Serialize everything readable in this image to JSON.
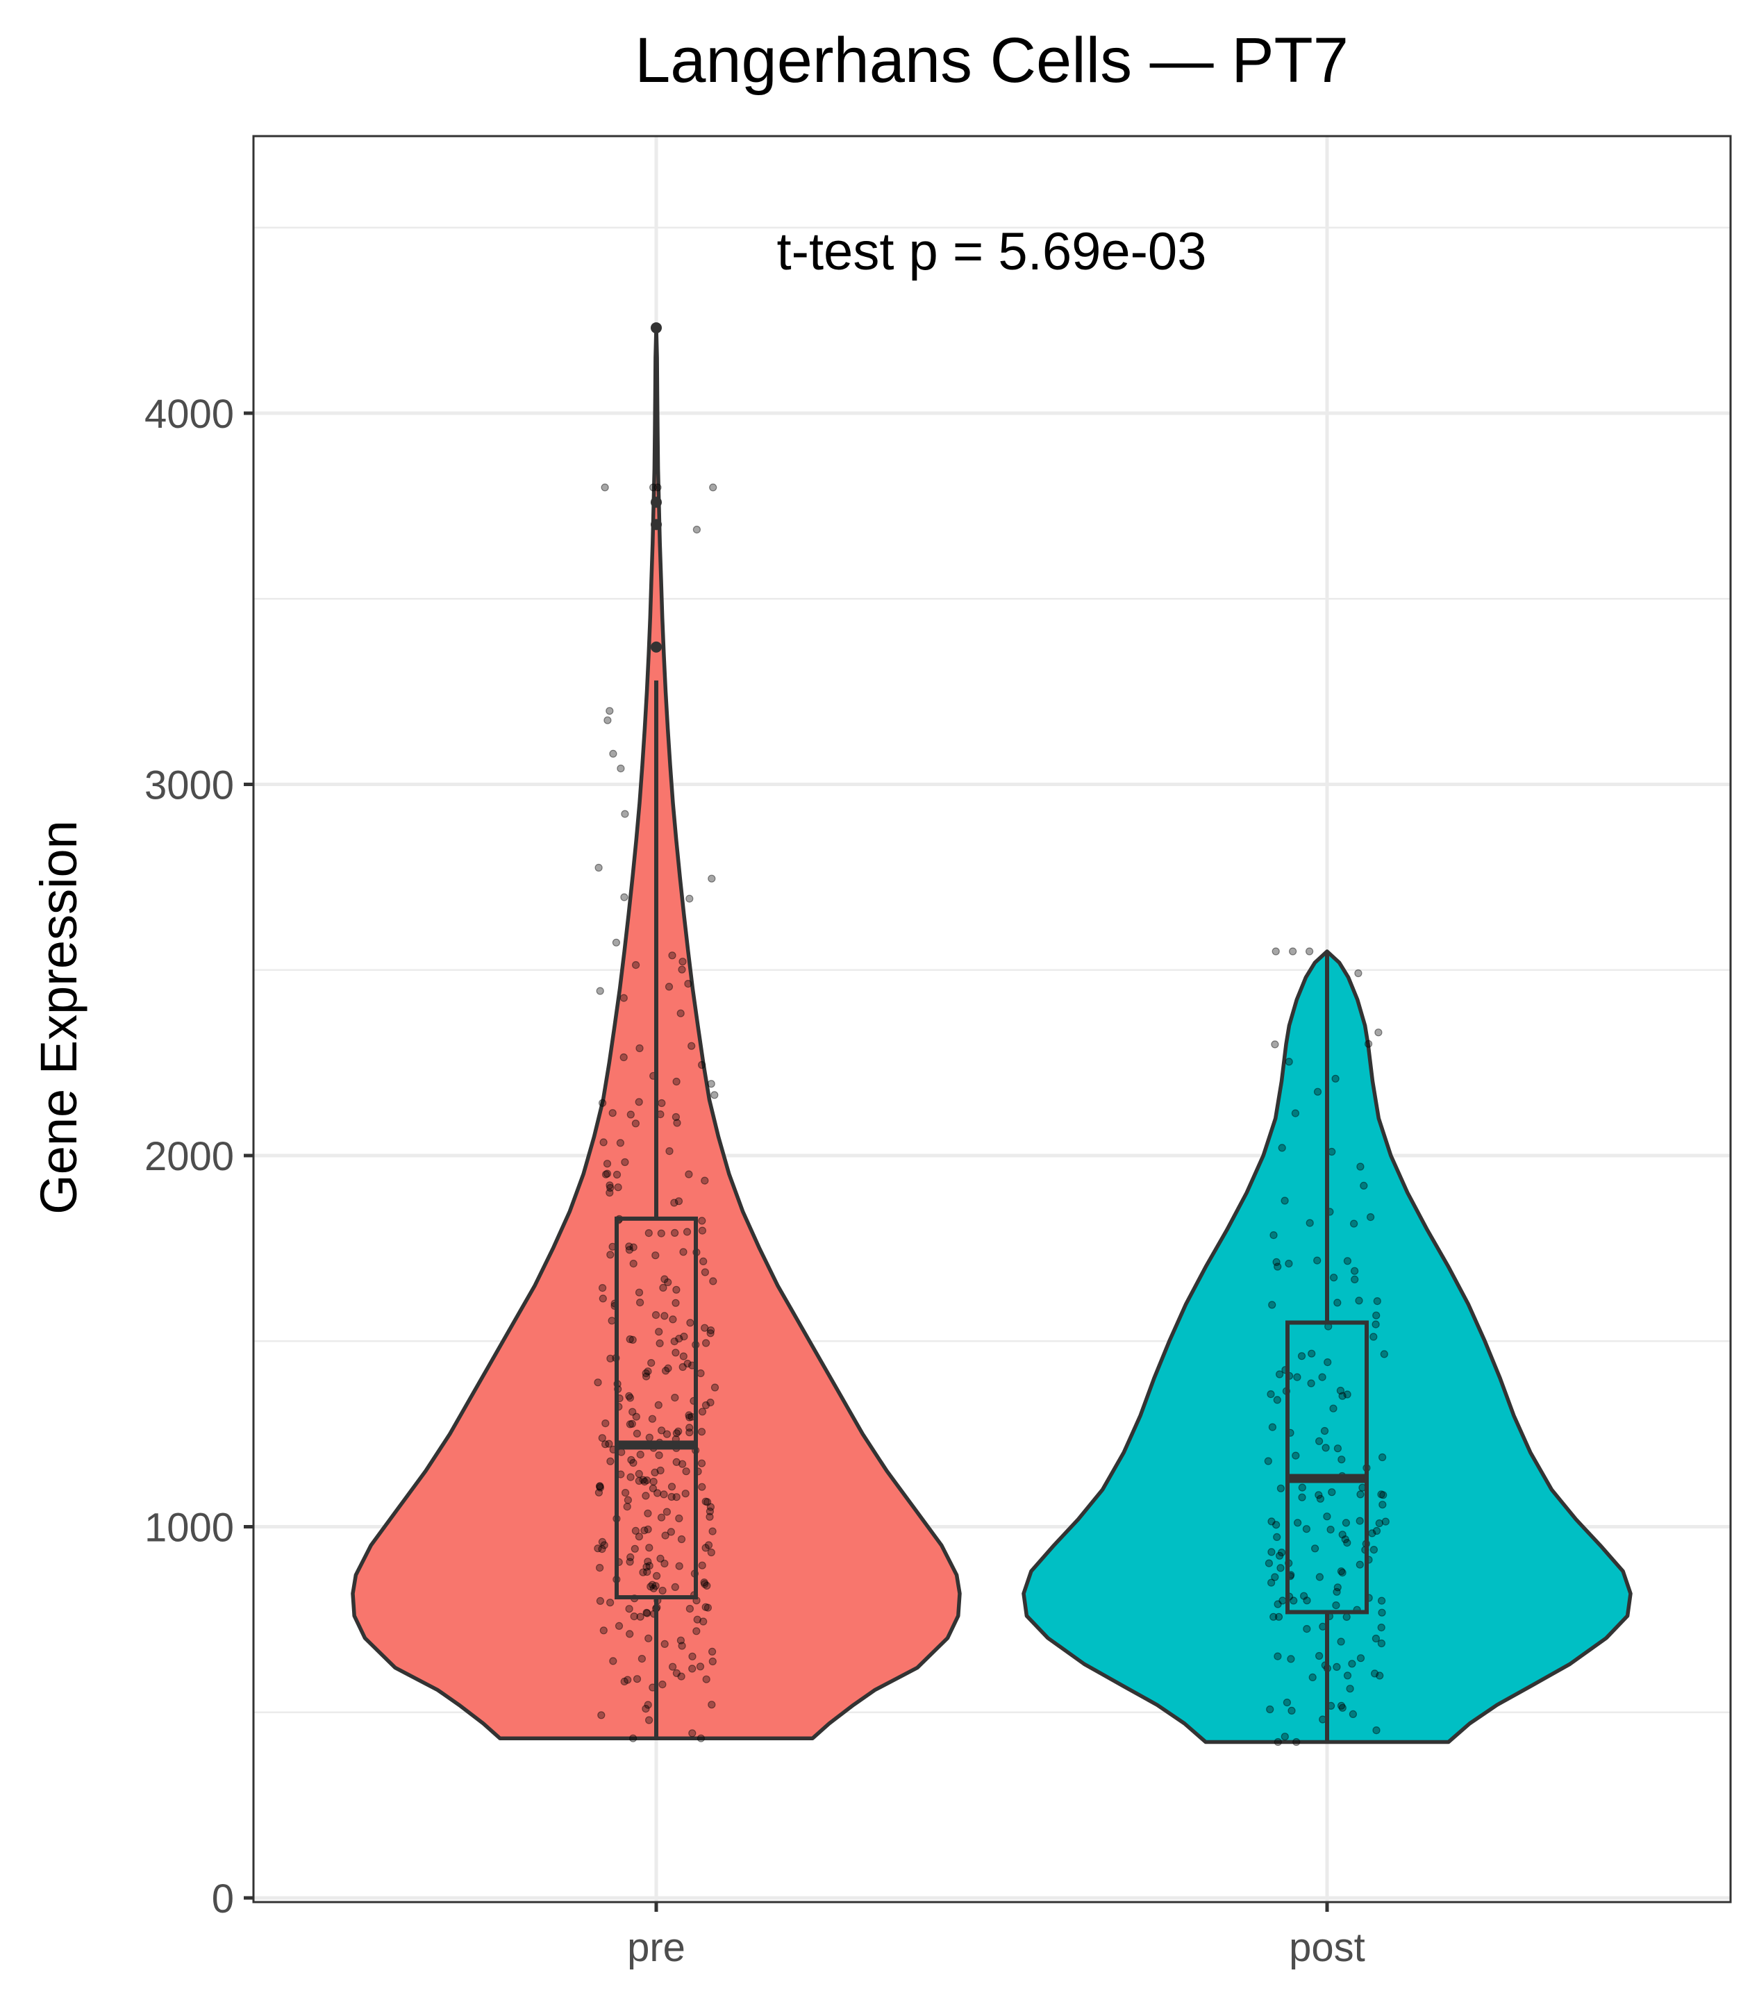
{
  "chart_data": {
    "type": "violin",
    "title": "Langerhans Cells — PT7",
    "ylabel": "Gene Expression",
    "xlabel": "",
    "annotation": "t-test p = 5.69e-03",
    "ylim": [
      0,
      4700
    ],
    "y_ticks": [
      0,
      1000,
      2000,
      3000,
      4000
    ],
    "y_tick_labels": [
      "0",
      "1000",
      "2000",
      "3000",
      "4000"
    ],
    "grid": true,
    "legend": "none",
    "categories": [
      "pre",
      "post"
    ],
    "series": [
      {
        "category": "pre",
        "color": "#F8766D",
        "min": 430,
        "max": 4230,
        "box": {
          "q1": 810,
          "median": 1220,
          "q3": 1830,
          "whisker_low": 430,
          "whisker_high": 3280
        },
        "outliers": [
          3370,
          3700,
          3760,
          4230
        ],
        "n_points": 300
      },
      {
        "category": "post",
        "color": "#00BFC4",
        "min": 420,
        "max": 2550,
        "box": {
          "q1": 770,
          "median": 1130,
          "q3": 1550,
          "whisker_low": 420,
          "whisker_high": 2550
        },
        "outliers": [],
        "n_points": 160
      }
    ]
  }
}
